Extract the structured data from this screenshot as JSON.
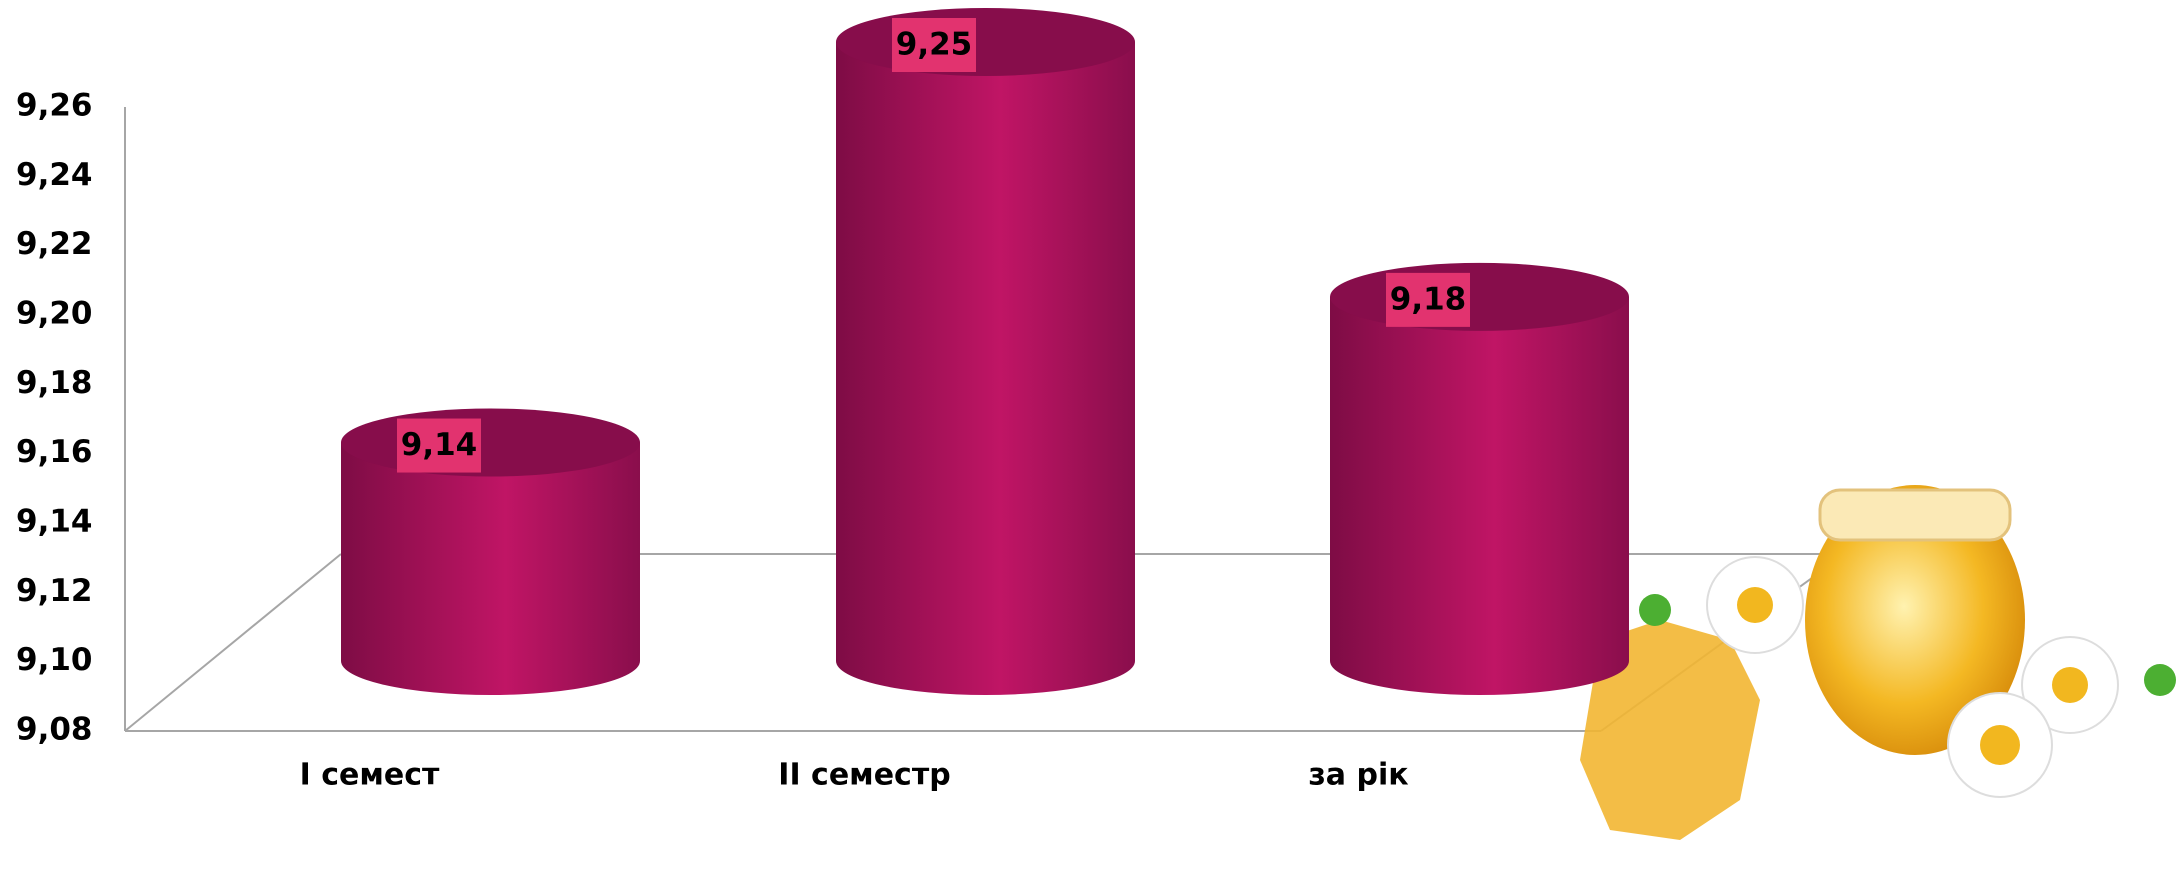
{
  "chart_data": {
    "type": "cylinder-bar",
    "categories": [
      "I семест",
      "II семестр",
      "за рік"
    ],
    "values": [
      9.14,
      9.25,
      9.18
    ],
    "value_labels": [
      "9,14",
      "9,25",
      "9,18"
    ],
    "color": "#be1463",
    "ylim": [
      9.08,
      9.26
    ],
    "yticks": [
      {
        "value": 9.08,
        "label": "9,08"
      },
      {
        "value": 9.1,
        "label": "9,10"
      },
      {
        "value": 9.12,
        "label": "9,12"
      },
      {
        "value": 9.14,
        "label": "9,14"
      },
      {
        "value": 9.16,
        "label": "9,16"
      },
      {
        "value": 9.18,
        "label": "9,18"
      },
      {
        "value": 9.2,
        "label": "9,20"
      },
      {
        "value": 9.22,
        "label": "9,22"
      },
      {
        "value": 9.24,
        "label": "9,24"
      },
      {
        "value": 9.26,
        "label": "9,26"
      }
    ],
    "grid": false
  }
}
